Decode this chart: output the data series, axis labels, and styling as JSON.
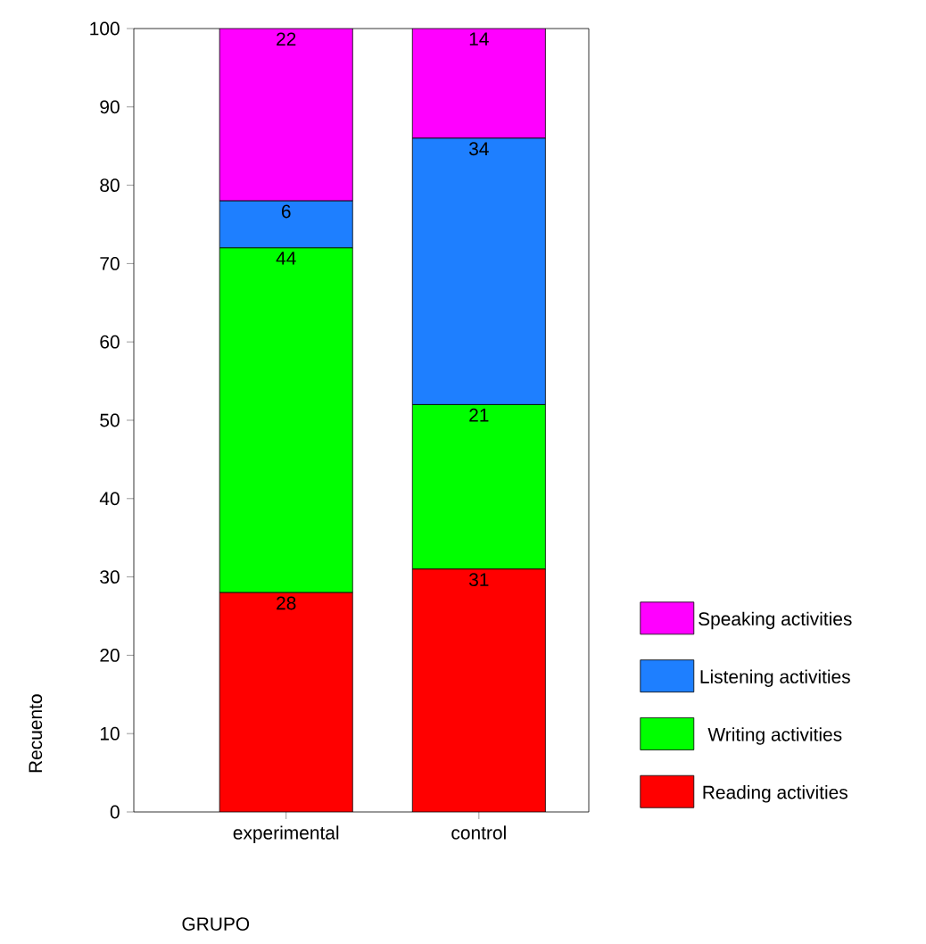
{
  "chart_data": {
    "type": "bar",
    "stacked": true,
    "categories": [
      "experimental",
      "control"
    ],
    "xlabel": "GRUPO",
    "ylabel": "Recuento",
    "ylim": [
      0,
      100
    ],
    "yticks": [
      0,
      10,
      20,
      30,
      40,
      50,
      60,
      70,
      80,
      90,
      100
    ],
    "data_labels": true,
    "legend": "right",
    "grid": false,
    "series": [
      {
        "name": "Reading activities",
        "color": "#ff0000",
        "values": [
          28,
          31
        ]
      },
      {
        "name": "Writing activities",
        "color": "#00ff00",
        "values": [
          44,
          21
        ]
      },
      {
        "name": "Listening activities",
        "color": "#1e7fff",
        "values": [
          6,
          34
        ]
      },
      {
        "name": "Speaking activities",
        "color": "#ff00ff",
        "values": [
          22,
          14
        ]
      }
    ]
  }
}
